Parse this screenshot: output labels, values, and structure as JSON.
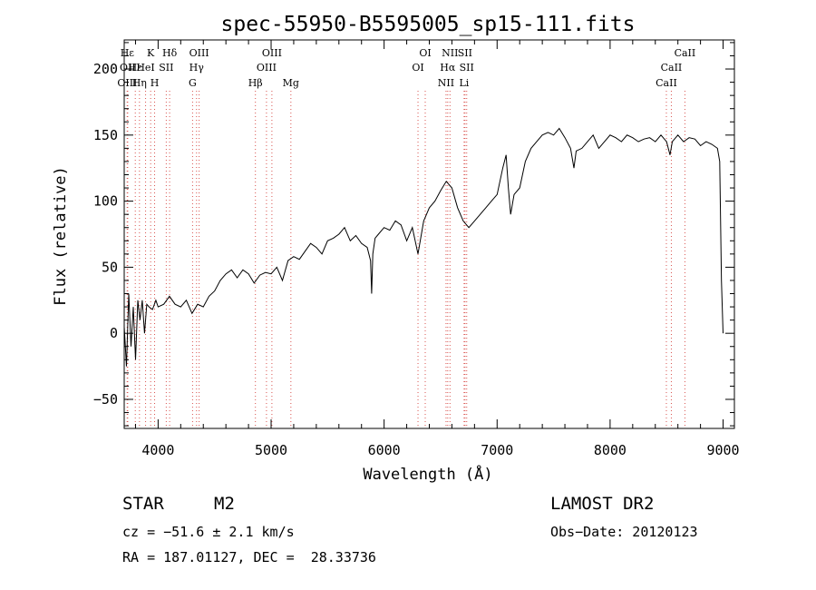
{
  "chart_data": {
    "type": "line",
    "title": "spec-55950-B5595005_sp15-111.fits",
    "xlabel": "Wavelength (Å)",
    "ylabel": "Flux (relative)",
    "xlim": [
      3700,
      9100
    ],
    "ylim": [
      -72,
      222
    ],
    "xticks": [
      4000,
      5000,
      6000,
      7000,
      8000,
      9000
    ],
    "yticks": [
      -50,
      0,
      50,
      100,
      150,
      200
    ],
    "grid": false,
    "series": [
      {
        "x": [
          3700,
          3720,
          3740,
          3760,
          3780,
          3800,
          3820,
          3840,
          3860,
          3880,
          3900,
          3920,
          3950,
          3980,
          4000,
          4050,
          4100,
          4150,
          4200,
          4250,
          4300,
          4350,
          4400,
          4450,
          4500,
          4550,
          4600,
          4650,
          4700,
          4750,
          4800,
          4850,
          4900,
          4950,
          5000,
          5050,
          5100,
          5150,
          5200,
          5250,
          5300,
          5350,
          5400,
          5450,
          5500,
          5550,
          5600,
          5650,
          5700,
          5750,
          5800,
          5850,
          5880,
          5890,
          5900,
          5920,
          5950,
          6000,
          6050,
          6100,
          6150,
          6200,
          6250,
          6300,
          6350,
          6400,
          6450,
          6500,
          6550,
          6600,
          6650,
          6700,
          6750,
          6800,
          6850,
          6900,
          6950,
          7000,
          7050,
          7080,
          7100,
          7120,
          7150,
          7200,
          7250,
          7300,
          7350,
          7400,
          7450,
          7500,
          7550,
          7600,
          7650,
          7680,
          7700,
          7750,
          7800,
          7850,
          7900,
          7950,
          8000,
          8050,
          8100,
          8150,
          8200,
          8250,
          8300,
          8350,
          8400,
          8450,
          8500,
          8530,
          8550,
          8600,
          8650,
          8700,
          8750,
          8800,
          8850,
          8900,
          8950,
          8970,
          8985,
          9000
        ],
        "y": [
          5,
          -25,
          30,
          -10,
          20,
          -20,
          25,
          10,
          25,
          0,
          22,
          20,
          18,
          25,
          20,
          22,
          28,
          22,
          20,
          25,
          15,
          22,
          20,
          28,
          32,
          40,
          45,
          48,
          42,
          48,
          45,
          38,
          44,
          46,
          45,
          50,
          40,
          55,
          58,
          56,
          62,
          68,
          65,
          60,
          70,
          72,
          75,
          80,
          70,
          74,
          68,
          65,
          55,
          30,
          60,
          72,
          75,
          80,
          78,
          85,
          82,
          70,
          80,
          60,
          85,
          95,
          100,
          108,
          115,
          110,
          95,
          85,
          80,
          85,
          90,
          95,
          100,
          105,
          125,
          135,
          110,
          90,
          105,
          110,
          130,
          140,
          145,
          150,
          152,
          150,
          155,
          148,
          140,
          125,
          138,
          140,
          145,
          150,
          140,
          145,
          150,
          148,
          145,
          150,
          148,
          145,
          147,
          148,
          145,
          150,
          145,
          135,
          145,
          150,
          145,
          148,
          147,
          142,
          145,
          143,
          140,
          130,
          40,
          0
        ]
      }
    ],
    "lines": [
      {
        "name": "Hε",
        "x": 3727,
        "row": 0
      },
      {
        "name": "OII",
        "x": 3731,
        "row": 1
      },
      {
        "name": "OIII",
        "x": 3727,
        "row": 2
      },
      {
        "name": "Hε",
        "x": 3798,
        "row": 1
      },
      {
        "name": "Hη",
        "x": 3835,
        "row": 2
      },
      {
        "name": "K",
        "x": 3934,
        "row": 0
      },
      {
        "name": "H",
        "x": 3969,
        "row": 2
      },
      {
        "name": "HeI",
        "x": 3889,
        "row": 1
      },
      {
        "name": "SII",
        "x": 4072,
        "row": 1
      },
      {
        "name": "Hδ",
        "x": 4102,
        "row": 0
      },
      {
        "name": "OIII",
        "x": 4363,
        "row": 0
      },
      {
        "name": "Hγ",
        "x": 4340,
        "row": 1
      },
      {
        "name": "G",
        "x": 4305,
        "row": 2
      },
      {
        "name": "Hβ",
        "x": 4861,
        "row": 2
      },
      {
        "name": "OIII",
        "x": 4959,
        "row": 1
      },
      {
        "name": "OIII",
        "x": 5007,
        "row": 0
      },
      {
        "name": "Mg",
        "x": 5175,
        "row": 2
      },
      {
        "name": "OI",
        "x": 6300,
        "row": 1
      },
      {
        "name": "OI",
        "x": 6364,
        "row": 0
      },
      {
        "name": "NII",
        "x": 6548,
        "row": 2
      },
      {
        "name": "NII",
        "x": 6583,
        "row": 0
      },
      {
        "name": "Hα",
        "x": 6563,
        "row": 1
      },
      {
        "name": "SII",
        "x": 6716,
        "row": 0
      },
      {
        "name": "SII",
        "x": 6731,
        "row": 1
      },
      {
        "name": "Li",
        "x": 6708,
        "row": 2
      },
      {
        "name": "CaII",
        "x": 8498,
        "row": 2
      },
      {
        "name": "CaII",
        "x": 8542,
        "row": 1
      },
      {
        "name": "CaII",
        "x": 8662,
        "row": 0
      }
    ]
  },
  "info": {
    "class_label": "STAR",
    "subclass": "M2",
    "survey": "LAMOST DR2",
    "cz": "cz = −51.6 ± 2.1 km/s",
    "obs_date": "Obs−Date: 20120123",
    "coords": "RA = 187.01127, DEC =  28.33736"
  },
  "colors": {
    "spectrum": "#000000",
    "line_markers": "#d9534f",
    "axes": "#000000"
  }
}
